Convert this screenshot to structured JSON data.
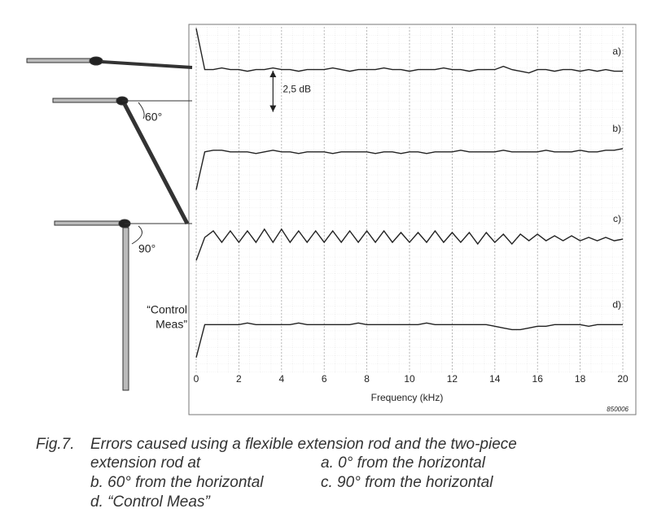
{
  "chart_data": {
    "type": "line",
    "xlabel": "Frequency (kHz)",
    "x": [
      0,
      0.4,
      0.8,
      1.2,
      1.6,
      2,
      2.4,
      2.8,
      3.2,
      3.6,
      4,
      4.4,
      4.8,
      5.2,
      5.6,
      6,
      6.4,
      6.8,
      7.2,
      7.6,
      8,
      8.4,
      8.8,
      9.2,
      9.6,
      10,
      10.4,
      10.8,
      11.2,
      11.6,
      12,
      12.4,
      12.8,
      13.2,
      13.6,
      14,
      14.4,
      14.8,
      15.2,
      15.6,
      16,
      16.4,
      16.8,
      17.2,
      17.6,
      18,
      18.4,
      18.8,
      19.2,
      19.6,
      20
    ],
    "series": [
      {
        "name": "a)",
        "color": "#222222",
        "values": [
          20.9,
          18.4,
          18.4,
          18.5,
          18.4,
          18.4,
          18.3,
          18.4,
          18.4,
          18.5,
          18.4,
          18.4,
          18.3,
          18.4,
          18.4,
          18.4,
          18.5,
          18.4,
          18.3,
          18.4,
          18.4,
          18.4,
          18.5,
          18.4,
          18.4,
          18.3,
          18.4,
          18.4,
          18.4,
          18.5,
          18.4,
          18.4,
          18.3,
          18.4,
          18.4,
          18.4,
          18.6,
          18.4,
          18.3,
          18.2,
          18.4,
          18.4,
          18.3,
          18.4,
          18.4,
          18.3,
          18.4,
          18.3,
          18.4,
          18.3,
          18.3
        ]
      },
      {
        "name": "b)",
        "color": "#222222",
        "values": [
          11.1,
          13.4,
          13.5,
          13.5,
          13.4,
          13.4,
          13.4,
          13.3,
          13.4,
          13.5,
          13.4,
          13.4,
          13.3,
          13.4,
          13.4,
          13.4,
          13.3,
          13.4,
          13.4,
          13.4,
          13.4,
          13.3,
          13.4,
          13.4,
          13.3,
          13.4,
          13.4,
          13.3,
          13.4,
          13.4,
          13.4,
          13.5,
          13.4,
          13.4,
          13.4,
          13.4,
          13.5,
          13.4,
          13.4,
          13.4,
          13.4,
          13.5,
          13.4,
          13.4,
          13.4,
          13.5,
          13.4,
          13.4,
          13.5,
          13.5,
          13.6
        ]
      },
      {
        "name": "c)",
        "color": "#222222",
        "values": [
          6.8,
          8.2,
          8.6,
          7.9,
          8.6,
          7.9,
          8.6,
          7.9,
          8.7,
          7.9,
          8.7,
          7.9,
          8.6,
          7.9,
          8.6,
          7.9,
          8.6,
          7.9,
          8.6,
          7.9,
          8.6,
          7.9,
          8.6,
          7.9,
          8.5,
          7.9,
          8.5,
          7.9,
          8.6,
          7.9,
          8.5,
          7.9,
          8.5,
          7.8,
          8.5,
          7.9,
          8.4,
          7.8,
          8.4,
          8.0,
          8.4,
          8.0,
          8.3,
          8.0,
          8.3,
          8.0,
          8.2,
          8.0,
          8.2,
          8.0,
          8.1
        ]
      },
      {
        "name": "d)",
        "color": "#222222",
        "values": [
          0.9,
          2.9,
          2.9,
          2.9,
          2.9,
          2.9,
          3.0,
          2.9,
          2.9,
          2.9,
          2.9,
          2.9,
          3.0,
          2.9,
          2.9,
          2.9,
          2.9,
          2.9,
          2.9,
          3.0,
          2.9,
          2.9,
          2.9,
          2.9,
          2.9,
          2.9,
          2.9,
          3.0,
          2.9,
          2.9,
          2.9,
          2.9,
          2.9,
          2.9,
          2.9,
          2.8,
          2.7,
          2.6,
          2.6,
          2.7,
          2.8,
          2.8,
          2.9,
          2.9,
          2.9,
          2.9,
          2.8,
          2.9,
          2.9,
          2.9,
          2.9
        ]
      }
    ],
    "xlim": [
      0,
      20
    ],
    "xticks": [
      0,
      2,
      4,
      6,
      8,
      10,
      12,
      14,
      16,
      18,
      20
    ],
    "ylim": [
      0,
      21
    ],
    "grid": true,
    "scale_bar": {
      "value": 2.5,
      "label": "2,5 dB"
    },
    "figure_id": "850006"
  },
  "drawing_labels": {
    "angle_60": "60°",
    "angle_90": "90°",
    "control": [
      "“Control",
      "Meas”"
    ]
  },
  "caption": {
    "label": "Fig.7.",
    "text_lines": [
      "Errors caused using a flexible extension rod and the two-piece",
      "extension rod at"
    ],
    "items": [
      "a. 0° from the horizontal",
      "b. 60° from the horizontal",
      "c. 90° from the horizontal",
      "d. “Control Meas”"
    ]
  }
}
